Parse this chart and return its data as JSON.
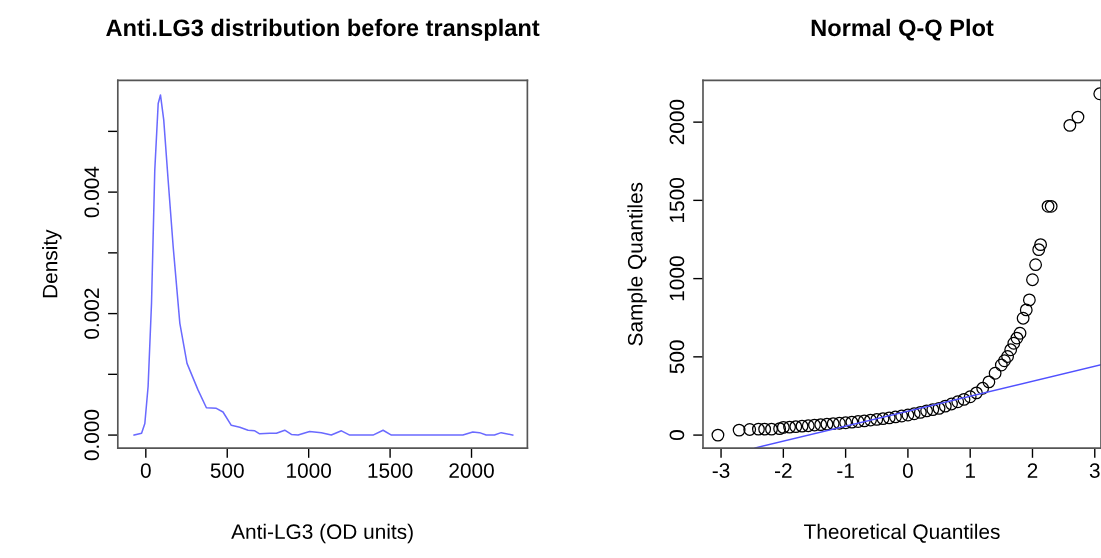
{
  "chart_data": [
    {
      "type": "line",
      "title": "Anti.LG3 distribution before transplant",
      "xlabel": "Anti-LG3 (OD units)",
      "ylabel": "Density",
      "xlim": [
        -172,
        2343
      ],
      "ylim": [
        -0.000214,
        0.00584
      ],
      "xticks": [
        0,
        500,
        1000,
        1500,
        2000
      ],
      "yticks": [
        {
          "value": 0,
          "label": "0.000"
        },
        {
          "value": 0.001,
          "label": null
        },
        {
          "value": 0.002,
          "label": "0.002"
        },
        {
          "value": 0.003,
          "label": null
        },
        {
          "value": 0.004,
          "label": "0.004"
        },
        {
          "value": 0.005,
          "label": null
        }
      ],
      "grid": false,
      "marker": "none",
      "line_style": "solid",
      "series": [
        {
          "color": "#6a6aff",
          "x": [
            -72,
            -26,
            -6,
            14,
            35,
            55,
            76,
            90,
            110,
            137,
            168,
            209,
            253,
            321,
            372,
            433,
            474,
            525,
            577,
            628,
            669,
            699,
            761,
            802,
            853,
            894,
            935,
            1006,
            1078,
            1139,
            1201,
            1252,
            1395,
            1457,
            1508,
            1947,
            2008,
            2049,
            2090,
            2141,
            2182,
            2253
          ],
          "values": [
            0,
            3e-05,
            0.00019,
            0.0008,
            0.00217,
            0.00436,
            0.00546,
            0.0056,
            0.00519,
            0.0042,
            0.0031,
            0.00184,
            0.00118,
            0.00074,
            0.00045,
            0.00044,
            0.00038,
            0.00016,
            0.00013,
            8e-05,
            7e-05,
            2e-05,
            3e-05,
            3e-05,
            8e-05,
            1e-05,
            0,
            6e-05,
            4e-05,
            0,
            7e-05,
            0,
            0,
            8e-05,
            0,
            0,
            5e-05,
            4e-05,
            0,
            0,
            4e-05,
            0
          ]
        }
      ]
    },
    {
      "type": "scatter",
      "title": "Normal Q-Q Plot",
      "xlabel": "Theoretical Quantiles",
      "ylabel": "Sample Quantiles",
      "xlim": [
        -3.29,
        3.1
      ],
      "ylim": [
        -83,
        2267
      ],
      "xticks": [
        -3,
        -2,
        -1,
        0,
        1,
        2,
        3
      ],
      "yticks": [
        0,
        500,
        1000,
        1500,
        2000
      ],
      "grid": false,
      "marker": "circle",
      "series": [
        {
          "color": "#000000",
          "x": [
            -3.05,
            -2.71,
            -2.54,
            -2.4,
            -2.3,
            -2.19,
            -2.06,
            -2.0,
            -1.9,
            -1.8,
            -1.7,
            -1.6,
            -1.5,
            -1.4,
            -1.3,
            -1.2,
            -1.1,
            -1.0,
            -0.9,
            -0.8,
            -0.7,
            -0.6,
            -0.5,
            -0.4,
            -0.3,
            -0.2,
            -0.1,
            0.0,
            0.1,
            0.2,
            0.3,
            0.4,
            0.5,
            0.6,
            0.7,
            0.8,
            0.9,
            1.0,
            1.1,
            1.2,
            1.3,
            1.4,
            1.5,
            1.55,
            1.6,
            1.65,
            1.7,
            1.75,
            1.8,
            1.85,
            1.9,
            1.95,
            2.0,
            2.05,
            2.1,
            2.13,
            2.25,
            2.3,
            2.6,
            2.73,
            3.08
          ],
          "values": [
            0,
            32,
            36,
            38,
            38,
            38,
            41,
            49,
            51,
            54,
            57,
            60,
            64,
            67,
            70,
            73,
            76,
            79,
            83,
            87,
            91,
            96,
            100,
            105,
            110,
            116,
            122,
            128,
            136,
            145,
            155,
            163,
            171,
            185,
            199,
            213,
            228,
            245,
            270,
            299,
            340,
            395,
            448,
            475,
            502,
            545,
            587,
            620,
            651,
            747,
            800,
            864,
            993,
            1089,
            1185,
            1217,
            1462,
            1462,
            1979,
            2032,
            2181
          ]
        },
        {
          "type": "line",
          "color": "#5050ff",
          "marker": "none",
          "line_style": "solid",
          "x": [
            -2.45,
            3.1
          ],
          "values": [
            -82,
            449
          ]
        }
      ]
    }
  ]
}
